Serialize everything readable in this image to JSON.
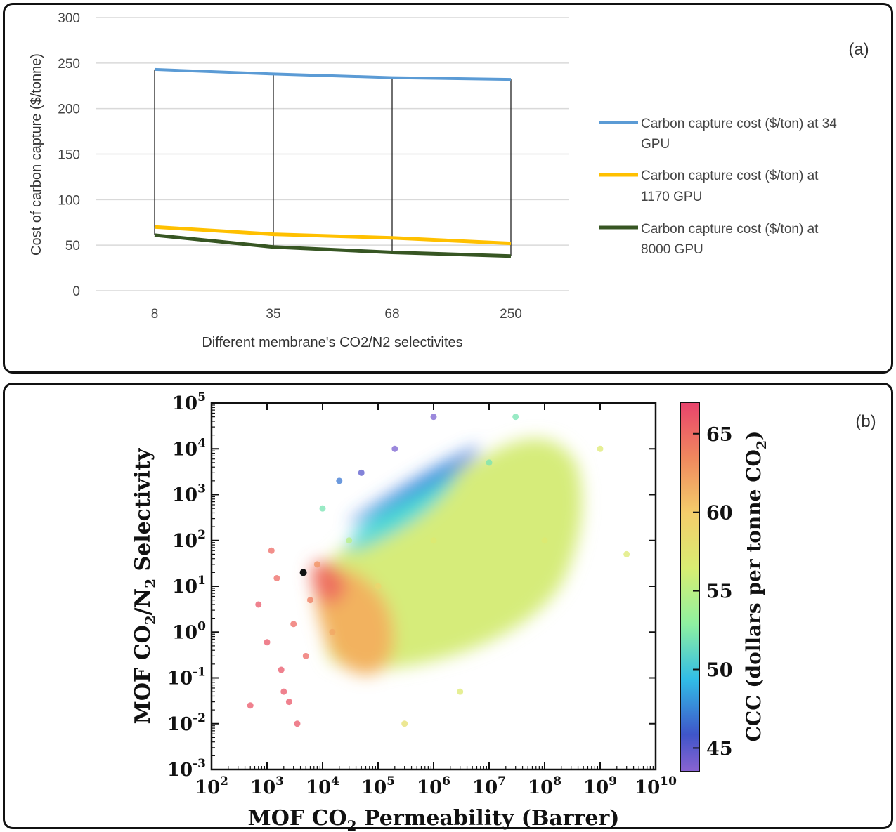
{
  "panel_a": {
    "panel_label": "(a)",
    "y_ticks": [
      "300",
      "250",
      "200",
      "150",
      "100",
      "50",
      "0"
    ],
    "legend": [
      {
        "line1": "Carbon capture cost ($/ton) at 34",
        "line2": "GPU"
      },
      {
        "line1": "Carbon capture cost ($/ton) at",
        "line2": "1170 GPU"
      },
      {
        "line1": "Carbon capture cost ($/ton) at",
        "line2": "8000 GPU"
      }
    ]
  },
  "panel_b": {
    "panel_label": "(b)",
    "x_tick_base": "10",
    "x_tick_exps": [
      "2",
      "3",
      "4",
      "5",
      "6",
      "7",
      "8",
      "9",
      "10"
    ],
    "y_tick_base": "10",
    "y_tick_exps": [
      "5",
      "4",
      "3",
      "2",
      "1",
      "0",
      "-1",
      "-2",
      "-3"
    ],
    "ylabel": {
      "pre": "MOF CO",
      "sub1": "2",
      "mid": "/N",
      "sub2": "2",
      "post": " Selectivity"
    },
    "xlabel": {
      "pre": "MOF CO",
      "sub": "2",
      "post": " Permeability (Barrer)"
    },
    "colorbar": {
      "ticks": [
        "65",
        "60",
        "55",
        "50",
        "45"
      ],
      "label": {
        "pre": "CCC (dollars per tonne CO",
        "sub": "2",
        "post": ")"
      }
    }
  },
  "colors": {
    "series_34": "#5b9bd5",
    "series_1170": "#ffc000",
    "series_8000": "#375623",
    "grid": "#d9d9d9",
    "connector": "#222222"
  },
  "chart_data": [
    {
      "type": "line",
      "panel": "(a)",
      "categories": [
        "8",
        "35",
        "68",
        "250"
      ],
      "xlabel": "Different membrane's CO2/N2 selectivites",
      "ylabel": "Cost of carbon capture ($/tonne)",
      "ylim": [
        0,
        300
      ],
      "grid": true,
      "legend_position": "right",
      "series": [
        {
          "name": "Carbon capture cost ($/ton) at 34 GPU",
          "values": [
            243,
            238,
            234,
            232
          ]
        },
        {
          "name": "Carbon capture cost ($/ton) at 1170 GPU",
          "values": [
            70,
            62,
            58,
            52
          ]
        },
        {
          "name": "Carbon capture cost ($/ton) at 8000 GPU",
          "values": [
            61,
            48,
            42,
            38
          ]
        }
      ],
      "connectors": "vertical high-low lines at each category"
    },
    {
      "type": "scatter",
      "panel": "(b)",
      "x_scale": "log",
      "y_scale": "log",
      "xlabel": "MOF CO2 Permeability (Barrer)",
      "ylabel": "MOF CO2/N2 Selectivity",
      "xlim": [
        100,
        10000000000
      ],
      "ylim": [
        0.001,
        100000
      ],
      "color_label": "CCC (dollars per tonne CO2)",
      "color_range": [
        43.5,
        67
      ],
      "colorbar_ticks": [
        45,
        50,
        55,
        60,
        65
      ],
      "note": "dense cloud of tens of thousands of MOF points; representative sample listed",
      "points": [
        {
          "x": 500,
          "y": 0.025,
          "c": 66
        },
        {
          "x": 700,
          "y": 4,
          "c": 66
        },
        {
          "x": 1000,
          "y": 0.6,
          "c": 66
        },
        {
          "x": 1200,
          "y": 60,
          "c": 65
        },
        {
          "x": 1500,
          "y": 15,
          "c": 65
        },
        {
          "x": 1800,
          "y": 0.15,
          "c": 66
        },
        {
          "x": 2000,
          "y": 0.05,
          "c": 66
        },
        {
          "x": 2500,
          "y": 0.03,
          "c": 66
        },
        {
          "x": 3000,
          "y": 1.5,
          "c": 65
        },
        {
          "x": 3500,
          "y": 0.01,
          "c": 66
        },
        {
          "x": 4500,
          "y": 20,
          "c": 43.5
        },
        {
          "x": 5000,
          "y": 0.3,
          "c": 65
        },
        {
          "x": 6000,
          "y": 5,
          "c": 64
        },
        {
          "x": 8000,
          "y": 30,
          "c": 63
        },
        {
          "x": 10000,
          "y": 500,
          "c": 52
        },
        {
          "x": 15000,
          "y": 1,
          "c": 62
        },
        {
          "x": 20000,
          "y": 2000,
          "c": 47
        },
        {
          "x": 30000,
          "y": 100,
          "c": 55
        },
        {
          "x": 50000,
          "y": 3000,
          "c": 45
        },
        {
          "x": 100000,
          "y": 10,
          "c": 59
        },
        {
          "x": 200000,
          "y": 10000,
          "c": 44
        },
        {
          "x": 300000,
          "y": 0.01,
          "c": 58
        },
        {
          "x": 1000000,
          "y": 50000,
          "c": 44
        },
        {
          "x": 1000000,
          "y": 100,
          "c": 57
        },
        {
          "x": 3000000,
          "y": 0.05,
          "c": 57
        },
        {
          "x": 10000000,
          "y": 5000,
          "c": 52
        },
        {
          "x": 30000000,
          "y": 50000,
          "c": 52
        },
        {
          "x": 100000000,
          "y": 100,
          "c": 57
        },
        {
          "x": 1000000000,
          "y": 10000,
          "c": 57
        },
        {
          "x": 3000000000,
          "y": 50,
          "c": 57
        }
      ]
    }
  ]
}
